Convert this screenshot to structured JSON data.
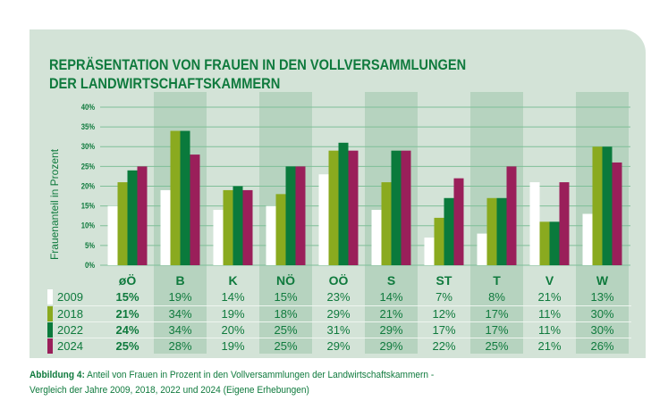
{
  "chart_data": {
    "type": "bar",
    "title": "REPRÄSENTATION VON FRAUEN IN DEN VOLLVERSAMMLUNGEN DER LANDWIRTSCHAFTSKAMMERN",
    "title_lines": [
      "REPRÄSENTATION VON FRAUEN IN DEN VOLLVERSAMMLUNGEN",
      "DER LANDWIRTSCHAFTSKAMMERN"
    ],
    "ylabel": "Frauenanteil in Prozent",
    "xlabel": "",
    "ylim": [
      0,
      40
    ],
    "yticks": [
      "0%",
      "5%",
      "10%",
      "15%",
      "20%",
      "25%",
      "30%",
      "35%",
      "40%"
    ],
    "grid": true,
    "categories": [
      "øÖ",
      "B",
      "K",
      "NÖ",
      "OÖ",
      "S",
      "ST",
      "T",
      "V",
      "W"
    ],
    "series": [
      {
        "name": "2009",
        "color": "#ffffff",
        "values": [
          15,
          19,
          14,
          15,
          23,
          14,
          7,
          8,
          21,
          13
        ]
      },
      {
        "name": "2018",
        "color": "#8aaa1f",
        "values": [
          21,
          34,
          19,
          18,
          29,
          21,
          12,
          17,
          11,
          30
        ]
      },
      {
        "name": "2022",
        "color": "#0a7a3c",
        "values": [
          24,
          34,
          20,
          25,
          31,
          29,
          17,
          17,
          11,
          30
        ]
      },
      {
        "name": "2024",
        "color": "#9a1f5a",
        "values": [
          25,
          28,
          19,
          25,
          29,
          29,
          22,
          25,
          21,
          26
        ]
      }
    ],
    "shaded_categories": [
      "B",
      "NÖ",
      "S",
      "T",
      "W"
    ],
    "legend": "table-left"
  },
  "colors": {
    "text": "#0f7a3d",
    "panel": "#d3e3d7",
    "shade": "#b6d3bf",
    "grid": "#7fbf98"
  },
  "caption": {
    "label": "Abbildung 4:",
    "line1": " Anteil von Frauen in Prozent in den Vollversammlungen der Landwirtschaftskammern -",
    "line2": "Vergleich der Jahre 2009, 2018, 2022 und 2024 (Eigene Erhebungen)"
  }
}
